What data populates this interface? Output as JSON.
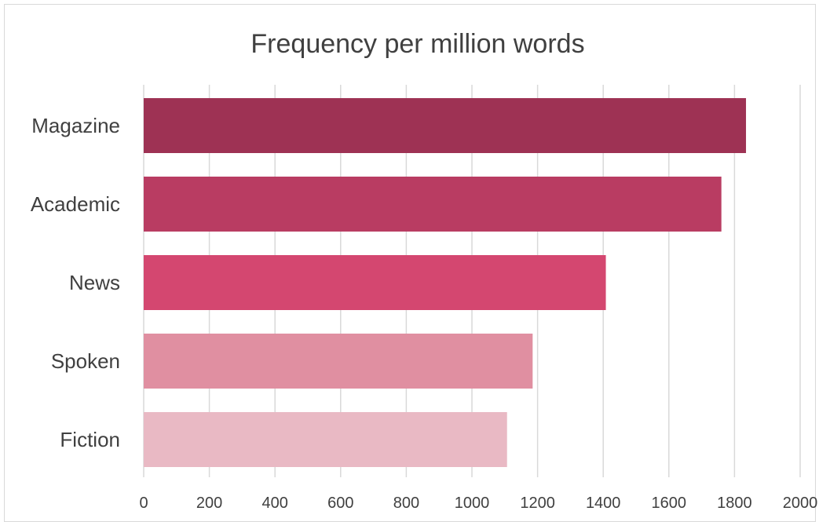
{
  "chart_data": {
    "type": "bar",
    "orientation": "horizontal",
    "title": "Frequency per million words",
    "xlabel": "",
    "ylabel": "",
    "categories": [
      "Magazine",
      "Academic",
      "News",
      "Spoken",
      "Fiction"
    ],
    "values": [
      1835,
      1760,
      1408,
      1185,
      1107
    ],
    "colors": [
      "#9e3254",
      "#b93c62",
      "#d44770",
      "#e08fa1",
      "#e9b9c4"
    ],
    "xlim": [
      0,
      2000
    ],
    "xticks": [
      "0",
      "200",
      "400",
      "600",
      "800",
      "1000",
      "1200",
      "1400",
      "1600",
      "1800",
      "2000"
    ],
    "grid": true,
    "legend": "none"
  }
}
